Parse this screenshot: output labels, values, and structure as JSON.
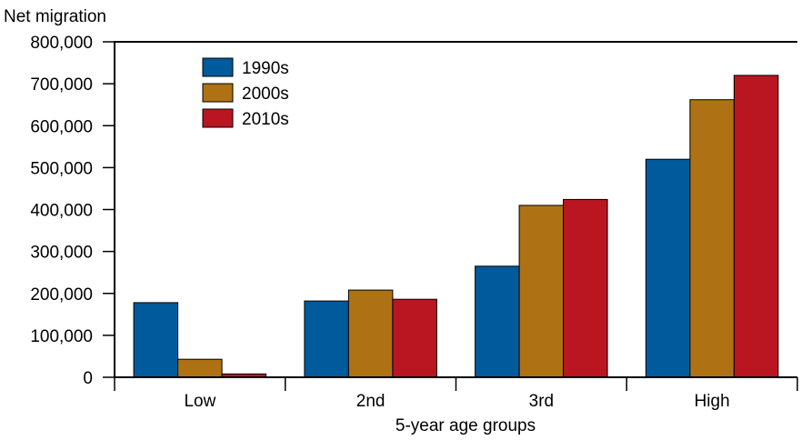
{
  "chart_data": {
    "type": "bar",
    "ylabel": "Net migration",
    "xlabel": "5-year age groups",
    "categories": [
      "Low",
      "2nd",
      "3rd",
      "High"
    ],
    "ylim": [
      0,
      800000
    ],
    "yticks": [
      0,
      100000,
      200000,
      300000,
      400000,
      500000,
      600000,
      700000,
      800000
    ],
    "ytick_labels": [
      "0",
      "100,000",
      "200,000",
      "300,000",
      "400,000",
      "500,000",
      "600,000",
      "700,000",
      "800,000"
    ],
    "legend_position": "top-left",
    "grid": false,
    "series": [
      {
        "name": "1990s",
        "color": "#005a9c",
        "values": [
          178000,
          182000,
          265000,
          520000
        ]
      },
      {
        "name": "2000s",
        "color": "#ae7214",
        "values": [
          43000,
          208000,
          410000,
          662000
        ]
      },
      {
        "name": "2010s",
        "color": "#ba1622",
        "values": [
          8000,
          186000,
          424000,
          720000
        ]
      }
    ]
  }
}
